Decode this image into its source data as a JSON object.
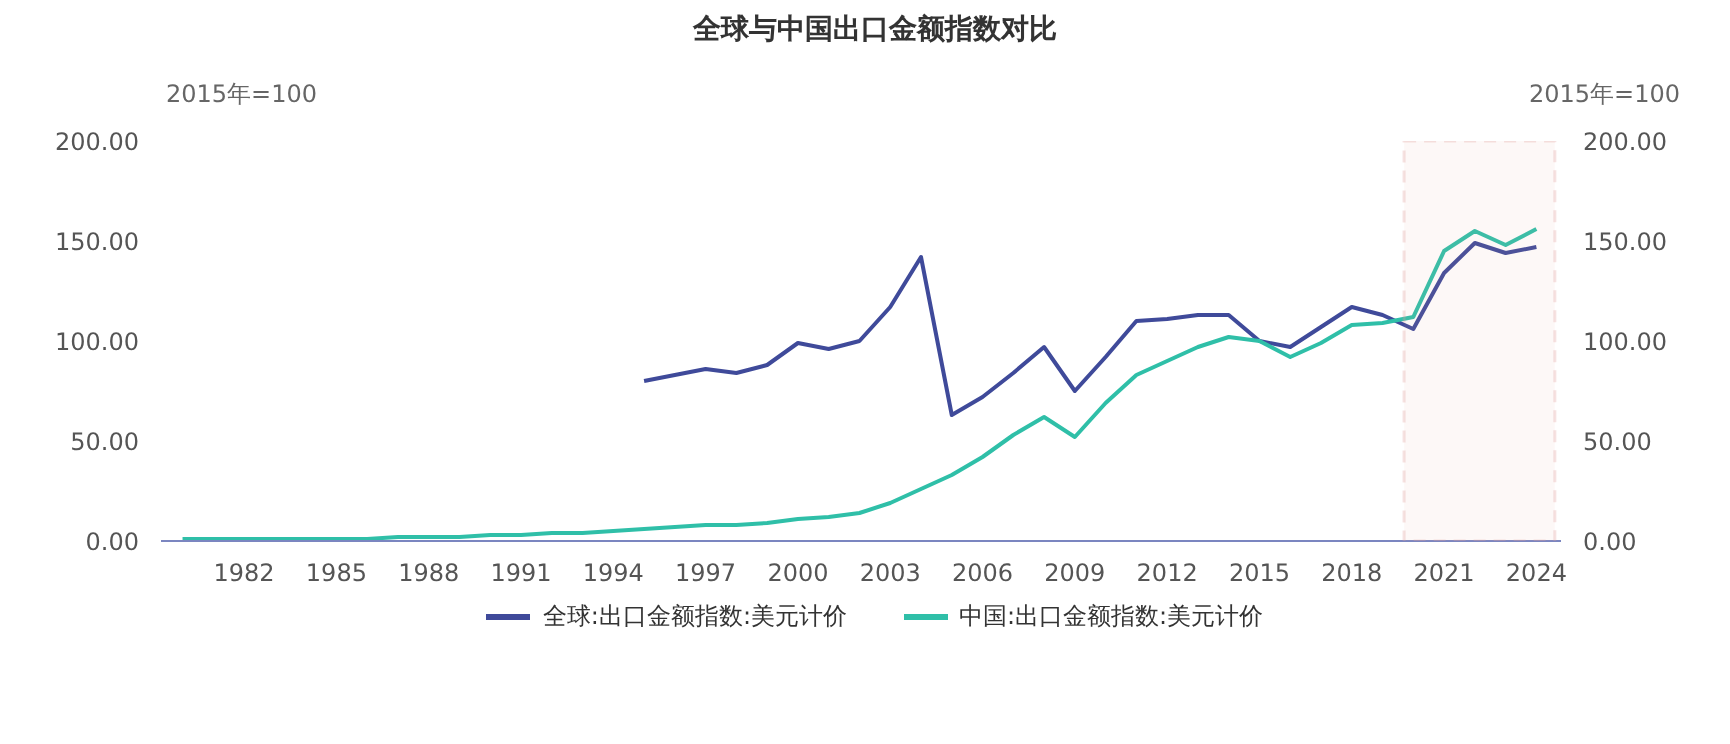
{
  "chart_data": {
    "type": "line",
    "title": "全球与中国出口金额指数对比",
    "ylabel": "2015年=100",
    "y2label": "2015年=100",
    "x": [
      1980,
      1981,
      1982,
      1983,
      1984,
      1985,
      1986,
      1987,
      1988,
      1989,
      1990,
      1991,
      1992,
      1993,
      1994,
      1995,
      1996,
      1997,
      1998,
      1999,
      2000,
      2001,
      2002,
      2003,
      2004,
      2005,
      2006,
      2007,
      2008,
      2009,
      2010,
      2011,
      2012,
      2013,
      2014,
      2015,
      2016,
      2017,
      2018,
      2019,
      2020,
      2021,
      2022,
      2023,
      2024
    ],
    "series": [
      {
        "name": "全球:出口金额指数:美元计价",
        "color": "#3f4a9a",
        "values": [
          null,
          null,
          null,
          null,
          null,
          null,
          null,
          null,
          null,
          null,
          null,
          null,
          null,
          null,
          null,
          80,
          83,
          86,
          84,
          88,
          99,
          96,
          100,
          117,
          142,
          63,
          72,
          84,
          97,
          75,
          92,
          110,
          111,
          113,
          113,
          100,
          97,
          107,
          117,
          113,
          106,
          134,
          149,
          144,
          147
        ]
      },
      {
        "name": "中国:出口金额指数:美元计价",
        "color": "#2fbfa8",
        "values": [
          1,
          1,
          1,
          1,
          1,
          1,
          1,
          2,
          2,
          2,
          3,
          3,
          4,
          4,
          5,
          6,
          7,
          8,
          8,
          9,
          11,
          12,
          14,
          19,
          26,
          33,
          42,
          53,
          62,
          52,
          69,
          83,
          90,
          97,
          102,
          100,
          92,
          99,
          108,
          109,
          112,
          145,
          155,
          148,
          156
        ]
      }
    ],
    "xlim": [
      1979.3,
      2024.8
    ],
    "xticks": [
      1982,
      1985,
      1988,
      1991,
      1994,
      1997,
      2000,
      2003,
      2006,
      2009,
      2012,
      2015,
      2018,
      2021,
      2024
    ],
    "ylim": [
      0,
      200
    ],
    "yticks": [
      {
        "value": 0,
        "label": "0.00"
      },
      {
        "value": 50,
        "label": "50.00"
      },
      {
        "value": 100,
        "label": "100.00"
      },
      {
        "value": 150,
        "label": "150.00"
      },
      {
        "value": 200,
        "label": "200.00"
      }
    ],
    "y2lim": [
      0,
      200
    ],
    "y2ticks": [
      {
        "value": 0,
        "label": "0.00"
      },
      {
        "value": 50,
        "label": "50.00"
      },
      {
        "value": 100,
        "label": "100.00"
      },
      {
        "value": 150,
        "label": "150.00"
      },
      {
        "value": 200,
        "label": "200.00"
      }
    ],
    "bands": [
      {
        "axis": "x",
        "from": 2019.7,
        "to": 2024.6,
        "color": "#e0a09a"
      }
    ],
    "legend": "bottom",
    "grid": false
  }
}
